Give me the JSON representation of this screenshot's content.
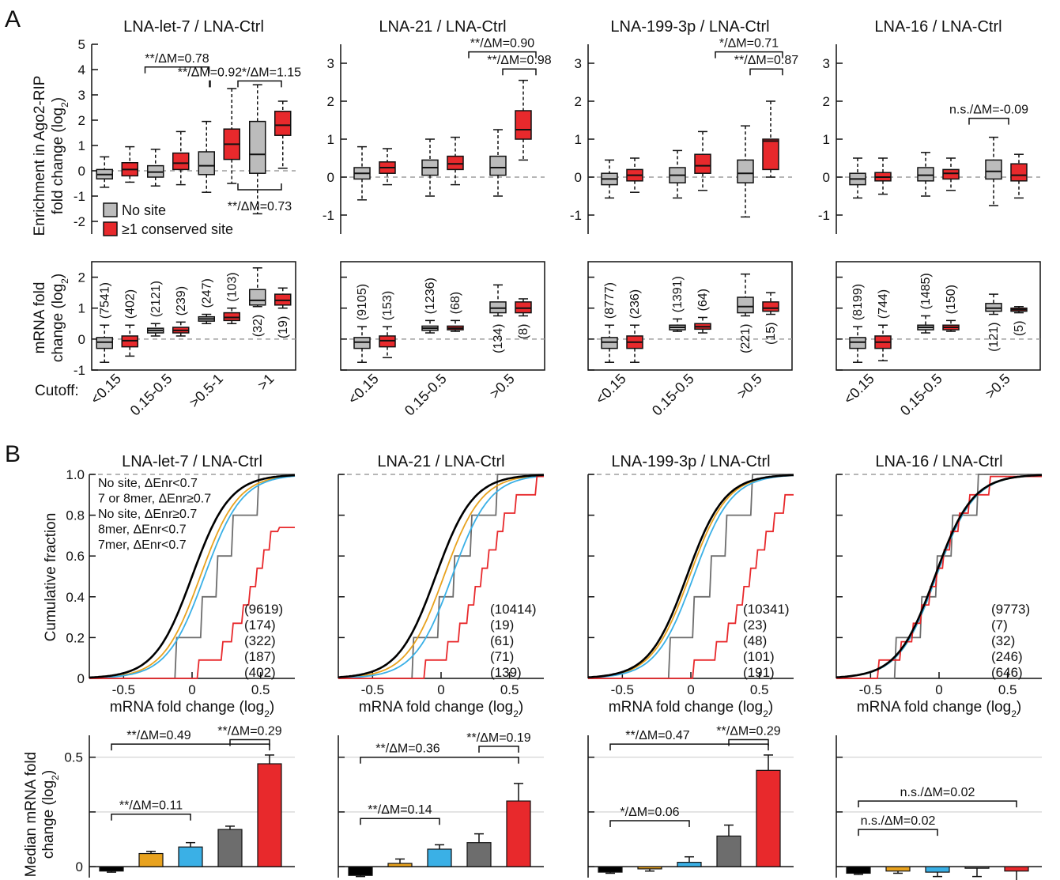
{
  "panels": {
    "a": "A",
    "b": "B"
  },
  "colors": {
    "red": "#e8292c",
    "gray": "#bcbcbc",
    "darkgray": "#6d6d6d",
    "black": "#000000",
    "blue": "#3ab0e6",
    "orange": "#e8a21e",
    "dash": "#9d9d9d"
  },
  "section_a": {
    "top_ylabel_1": "Enrichment in Ago2-RIP",
    "top_ylabel_2": "fold change (log",
    "top_ylabel_sub": "2",
    "top_ylabel_end": ")",
    "bottom_ylabel_1": "mRNA fold",
    "bottom_ylabel_2": "change (log",
    "bottom_ylabel_sub": "2",
    "bottom_ylabel_end": ")",
    "cutoff_label": "Cutoff:",
    "legend": [
      "No site",
      "≥1 conserved site"
    ]
  },
  "section_b": {
    "cdf_ylabel": "Cumulative fraction",
    "cdf_xlabel": "mRNA fold change (log",
    "cdf_xlabel_sub": "2",
    "cdf_xlabel_end": ")",
    "median_ylabel_1": "Median mRNA fold",
    "median_ylabel_2": "change (log",
    "median_ylabel_sub": "2",
    "median_ylabel_end": ")",
    "legend": [
      {
        "label": "No site, ΔEnr<0.7",
        "color": "#000000"
      },
      {
        "label": "7 or 8mer, ΔEnr≥0.7",
        "color": "#e8292c"
      },
      {
        "label": "No site, ΔEnr≥0.7",
        "color": "#6d6d6d"
      },
      {
        "label": "8mer, ΔEnr<0.7",
        "color": "#3ab0e6"
      },
      {
        "label": "7mer, ΔEnr<0.7",
        "color": "#e8a21e"
      }
    ]
  },
  "chart_data": [
    {
      "type": "box",
      "title": "LNA-let-7 / LNA-Ctrl",
      "categories": [
        "<0.15",
        "0.15-0.5",
        ">0.5-1",
        ">1"
      ],
      "ylim_top": [
        -2.5,
        5
      ],
      "yticks_top": [
        -2,
        -1,
        0,
        1,
        2,
        3,
        4,
        5
      ],
      "ylim_bottom": [
        -1,
        2.5
      ],
      "yticks_bottom": [
        -1,
        0,
        1,
        2
      ],
      "enrichment_boxes": [
        {
          "group": "No site",
          "cat": "<0.15",
          "min": -0.65,
          "q1": -0.32,
          "med": -0.15,
          "q3": 0.05,
          "max": 0.55
        },
        {
          "group": "≥1 conserved site",
          "cat": "<0.15",
          "min": -0.45,
          "q1": -0.2,
          "med": 0.05,
          "q3": 0.32,
          "max": 0.95
        },
        {
          "group": "No site",
          "cat": "0.15-0.5",
          "min": -0.6,
          "q1": -0.25,
          "med": -0.05,
          "q3": 0.2,
          "max": 0.85
        },
        {
          "group": "≥1 conserved site",
          "cat": "0.15-0.5",
          "min": -0.55,
          "q1": 0.05,
          "med": 0.3,
          "q3": 0.7,
          "max": 1.55
        },
        {
          "group": "No site",
          "cat": ">0.5-1",
          "min": -0.85,
          "q1": -0.15,
          "med": 0.2,
          "q3": 0.75,
          "max": 1.95
        },
        {
          "group": "≥1 conserved site",
          "cat": ">0.5-1",
          "min": -0.5,
          "q1": 0.45,
          "med": 1.05,
          "q3": 1.65,
          "max": 3.25
        },
        {
          "group": "No site",
          "cat": ">1",
          "min": -1.7,
          "q1": -0.1,
          "med": 0.65,
          "q3": 1.95,
          "max": 3.4
        },
        {
          "group": "≥1 conserved site",
          "cat": ">1",
          "min": 0.1,
          "q1": 1.4,
          "med": 1.8,
          "q3": 2.35,
          "max": 2.75
        }
      ],
      "mrna_boxes": [
        {
          "group": "No site",
          "cat": "<0.15",
          "min": -0.75,
          "q1": -0.3,
          "med": -0.1,
          "q3": 0.05,
          "max": 0.45
        },
        {
          "group": "≥1 conserved site",
          "cat": "<0.15",
          "min": -0.55,
          "q1": -0.25,
          "med": -0.05,
          "q3": 0.1,
          "max": 0.45
        },
        {
          "group": "No site",
          "cat": "0.15-0.5",
          "min": 0.1,
          "q1": 0.2,
          "med": 0.28,
          "q3": 0.35,
          "max": 0.5
        },
        {
          "group": "≥1 conserved site",
          "cat": "0.15-0.5",
          "min": 0.1,
          "q1": 0.2,
          "med": 0.28,
          "q3": 0.38,
          "max": 0.55
        },
        {
          "group": "No site",
          "cat": ">0.5-1",
          "min": 0.5,
          "q1": 0.58,
          "med": 0.65,
          "q3": 0.72,
          "max": 0.8
        },
        {
          "group": "≥1 conserved site",
          "cat": ">0.5-1",
          "min": 0.5,
          "q1": 0.6,
          "med": 0.7,
          "q3": 0.85,
          "max": 1.0
        },
        {
          "group": "No site",
          "cat": ">1",
          "min": 1.05,
          "q1": 1.1,
          "med": 1.25,
          "q3": 1.6,
          "max": 2.3
        },
        {
          "group": "≥1 conserved site",
          "cat": ">1",
          "min": 1.0,
          "q1": 1.1,
          "med": 1.25,
          "q3": 1.45,
          "max": 1.65
        }
      ],
      "counts": [
        "(7541)",
        "(402)",
        "(2121)",
        "(239)",
        "(247)",
        "(103)",
        "(32)",
        "(19)"
      ],
      "annotations": [
        "**/ΔM=0.78",
        "**/ΔM=0.92",
        "*/ΔM=1.15",
        "**/ΔM=0.73"
      ]
    },
    {
      "type": "box",
      "title": "LNA-21 / LNA-Ctrl",
      "categories": [
        "<0.15",
        "0.15-0.5",
        ">0.5"
      ],
      "ylim_top": [
        -1.5,
        3.5
      ],
      "yticks_top": [
        -1,
        0,
        1,
        2,
        3
      ],
      "ylim_bottom": [
        -1,
        2.5
      ],
      "enrichment_boxes": [
        {
          "group": "No site",
          "cat": "<0.15",
          "min": -0.6,
          "q1": -0.05,
          "med": 0.1,
          "q3": 0.25,
          "max": 0.8
        },
        {
          "group": "≥1 conserved site",
          "cat": "<0.15",
          "min": -0.2,
          "q1": 0.1,
          "med": 0.25,
          "q3": 0.4,
          "max": 0.75
        },
        {
          "group": "No site",
          "cat": "0.15-0.5",
          "min": -0.5,
          "q1": 0.05,
          "med": 0.25,
          "q3": 0.45,
          "max": 1.0
        },
        {
          "group": "≥1 conserved site",
          "cat": "0.15-0.5",
          "min": -0.2,
          "q1": 0.2,
          "med": 0.35,
          "q3": 0.55,
          "max": 1.05
        },
        {
          "group": "No site",
          "cat": ">0.5",
          "min": -0.5,
          "q1": 0.05,
          "med": 0.25,
          "q3": 0.55,
          "max": 1.25
        },
        {
          "group": "≥1 conserved site",
          "cat": ">0.5",
          "min": 0.45,
          "q1": 1.0,
          "med": 1.25,
          "q3": 1.75,
          "max": 2.55
        }
      ],
      "mrna_boxes": [
        {
          "group": "No site",
          "cat": "<0.15",
          "min": -0.75,
          "q1": -0.3,
          "med": -0.1,
          "q3": 0.05,
          "max": 0.4
        },
        {
          "group": "≥1 conserved site",
          "cat": "<0.15",
          "min": -0.6,
          "q1": -0.25,
          "med": -0.05,
          "q3": 0.1,
          "max": 0.4
        },
        {
          "group": "No site",
          "cat": "0.15-0.5",
          "min": 0.2,
          "q1": 0.28,
          "med": 0.35,
          "q3": 0.42,
          "max": 0.6
        },
        {
          "group": "≥1 conserved site",
          "cat": "0.15-0.5",
          "min": 0.25,
          "q1": 0.3,
          "med": 0.35,
          "q3": 0.42,
          "max": 0.6
        },
        {
          "group": "No site",
          "cat": ">0.5",
          "min": 0.75,
          "q1": 0.85,
          "med": 1.0,
          "q3": 1.2,
          "max": 1.75
        },
        {
          "group": "≥1 conserved site",
          "cat": ">0.5",
          "min": 0.75,
          "q1": 0.85,
          "med": 1.0,
          "q3": 1.2,
          "max": 1.3
        }
      ],
      "counts": [
        "(9105)",
        "(153)",
        "(1236)",
        "(68)",
        "(134)",
        "(8)"
      ],
      "annotations": [
        "**/ΔM=0.90",
        "**/ΔM=0.98"
      ]
    },
    {
      "type": "box",
      "title": "LNA-199-3p / LNA-Ctrl",
      "categories": [
        "<0.15",
        "0.15-0.5",
        ">0.5"
      ],
      "ylim_top": [
        -1.5,
        3.5
      ],
      "yticks_top": [
        -1,
        0,
        1,
        2,
        3
      ],
      "ylim_bottom": [
        -1,
        2.5
      ],
      "enrichment_boxes": [
        {
          "group": "No site",
          "cat": "<0.15",
          "min": -0.55,
          "q1": -0.2,
          "med": -0.05,
          "q3": 0.1,
          "max": 0.45
        },
        {
          "group": "≥1 conserved site",
          "cat": "<0.15",
          "min": -0.4,
          "q1": -0.1,
          "med": 0.05,
          "q3": 0.2,
          "max": 0.5
        },
        {
          "group": "No site",
          "cat": "0.15-0.5",
          "min": -0.55,
          "q1": -0.15,
          "med": 0.05,
          "q3": 0.25,
          "max": 0.7
        },
        {
          "group": "≥1 conserved site",
          "cat": "0.15-0.5",
          "min": -0.35,
          "q1": 0.1,
          "med": 0.3,
          "q3": 0.6,
          "max": 1.2
        },
        {
          "group": "No site",
          "cat": ">0.5",
          "min": -1.05,
          "q1": -0.15,
          "med": 0.1,
          "q3": 0.45,
          "max": 1.35
        },
        {
          "group": "≥1 conserved site",
          "cat": ">0.5",
          "min": 0.0,
          "q1": 0.2,
          "med": 0.95,
          "q3": 1.0,
          "max": 2.0
        }
      ],
      "mrna_boxes": [
        {
          "group": "No site",
          "cat": "<0.15",
          "min": -0.75,
          "q1": -0.3,
          "med": -0.1,
          "q3": 0.05,
          "max": 0.45
        },
        {
          "group": "≥1 conserved site",
          "cat": "<0.15",
          "min": -0.75,
          "q1": -0.3,
          "med": -0.1,
          "q3": 0.1,
          "max": 0.45
        },
        {
          "group": "No site",
          "cat": "0.15-0.5",
          "min": 0.25,
          "q1": 0.3,
          "med": 0.38,
          "q3": 0.45,
          "max": 0.65
        },
        {
          "group": "≥1 conserved site",
          "cat": "0.15-0.5",
          "min": 0.2,
          "q1": 0.32,
          "med": 0.4,
          "q3": 0.5,
          "max": 0.7
        },
        {
          "group": "No site",
          "cat": ">0.5",
          "min": 0.75,
          "q1": 0.85,
          "med": 1.05,
          "q3": 1.35,
          "max": 2.1
        },
        {
          "group": "≥1 conserved site",
          "cat": ">0.5",
          "min": 0.8,
          "q1": 0.9,
          "med": 1.0,
          "q3": 1.2,
          "max": 1.5
        }
      ],
      "counts": [
        "(8777)",
        "(236)",
        "(1391)",
        "(64)",
        "(221)",
        "(15)"
      ],
      "annotations": [
        "*/ΔM=0.71",
        "**/ΔM=0.87"
      ]
    },
    {
      "type": "box",
      "title": "LNA-16 / LNA-Ctrl",
      "categories": [
        "<0.15",
        "0.15-0.5",
        ">0.5"
      ],
      "ylim_top": [
        -1.5,
        3.5
      ],
      "yticks_top": [
        -1,
        0,
        1,
        2,
        3
      ],
      "ylim_bottom": [
        -1,
        2.5
      ],
      "enrichment_boxes": [
        {
          "group": "No site",
          "cat": "<0.15",
          "min": -0.55,
          "q1": -0.2,
          "med": -0.05,
          "q3": 0.1,
          "max": 0.5
        },
        {
          "group": "≥1 conserved site",
          "cat": "<0.15",
          "min": -0.45,
          "q1": -0.1,
          "med": 0.0,
          "q3": 0.12,
          "max": 0.5
        },
        {
          "group": "No site",
          "cat": "0.15-0.5",
          "min": -0.5,
          "q1": -0.1,
          "med": 0.05,
          "q3": 0.25,
          "max": 0.65
        },
        {
          "group": "≥1 conserved site",
          "cat": "0.15-0.5",
          "min": -0.35,
          "q1": -0.05,
          "med": 0.1,
          "q3": 0.2,
          "max": 0.5
        },
        {
          "group": "No site",
          "cat": ">0.5",
          "min": -0.75,
          "q1": -0.05,
          "med": 0.15,
          "q3": 0.45,
          "max": 1.05
        },
        {
          "group": "≥1 conserved site",
          "cat": ">0.5",
          "min": -0.55,
          "q1": -0.1,
          "med": 0.05,
          "q3": 0.35,
          "max": 0.6
        }
      ],
      "mrna_boxes": [
        {
          "group": "No site",
          "cat": "<0.15",
          "min": -0.75,
          "q1": -0.3,
          "med": -0.1,
          "q3": 0.05,
          "max": 0.4
        },
        {
          "group": "≥1 conserved site",
          "cat": "<0.15",
          "min": -0.7,
          "q1": -0.3,
          "med": -0.1,
          "q3": 0.1,
          "max": 0.45
        },
        {
          "group": "No site",
          "cat": "0.15-0.5",
          "min": 0.2,
          "q1": 0.3,
          "med": 0.38,
          "q3": 0.45,
          "max": 0.75
        },
        {
          "group": "≥1 conserved site",
          "cat": "0.15-0.5",
          "min": 0.25,
          "q1": 0.3,
          "med": 0.38,
          "q3": 0.45,
          "max": 0.6
        },
        {
          "group": "No site",
          "cat": ">0.5",
          "min": 0.8,
          "q1": 0.9,
          "med": 1.0,
          "q3": 1.15,
          "max": 1.45
        },
        {
          "group": "≥1 conserved site",
          "cat": ">0.5",
          "min": 0.85,
          "q1": 0.9,
          "med": 0.95,
          "q3": 1.0,
          "max": 1.05
        }
      ],
      "counts": [
        "(8199)",
        "(744)",
        "(1485)",
        "(150)",
        "(121)",
        "(5)"
      ],
      "annotations": [
        "n.s./ΔM=-0.09"
      ]
    },
    {
      "type": "line",
      "subtype": "cumulative distribution",
      "titles": [
        "LNA-let-7 / LNA-Ctrl",
        "LNA-21 / LNA-Ctrl",
        "LNA-199-3p / LNA-Ctrl",
        "LNA-16 / LNA-Ctrl"
      ],
      "xlim": [
        -0.75,
        0.75
      ],
      "xticks": [
        -0.5,
        0,
        0.5
      ],
      "ylim": [
        0,
        1.0
      ],
      "yticks": [
        0,
        0.2,
        0.4,
        0.6,
        0.8,
        1.0
      ],
      "series_order": [
        "No site, ΔEnr<0.7",
        "7 or 8mer, ΔEnr≥0.7",
        "No site, ΔEnr≥0.7",
        "8mer, ΔEnr<0.7",
        "7mer, ΔEnr<0.7"
      ],
      "medians": [
        [
          0.0,
          0.47,
          0.18,
          0.09,
          0.06
        ],
        [
          -0.04,
          0.3,
          0.1,
          0.08,
          0.02
        ],
        [
          -0.03,
          0.44,
          0.14,
          0.02,
          -0.01
        ],
        [
          -0.03,
          -0.02,
          -0.02,
          -0.02,
          -0.02
        ]
      ],
      "steps": [
        1.0,
        0.09,
        0.2,
        1.0,
        1.0
      ],
      "counts": [
        [
          "(9619)",
          "(174)",
          "(322)",
          "(187)",
          "(402)"
        ],
        [
          "(10414)",
          "(19)",
          "(61)",
          "(71)",
          "(139)"
        ],
        [
          "(10341)",
          "(23)",
          "(48)",
          "(101)",
          "(191)"
        ],
        [
          "(9773)",
          "(7)",
          "(32)",
          "(246)",
          "(646)"
        ]
      ]
    },
    {
      "type": "bar",
      "ylim": [
        -0.05,
        0.6
      ],
      "yticks": [
        0,
        0.5
      ],
      "categories": [
        "No site, ΔEnr<0.7",
        "7mer, ΔEnr<0.7",
        "8mer, ΔEnr<0.7",
        "No site, ΔEnr≥0.7",
        "7 or 8mer, ΔEnr≥0.7"
      ],
      "panels": [
        {
          "values": [
            -0.02,
            0.06,
            0.09,
            0.17,
            0.47
          ],
          "errors": [
            0.005,
            0.01,
            0.02,
            0.015,
            0.04
          ],
          "annotations": [
            "**/ΔM=0.49",
            "**/ΔM=0.29",
            "**/ΔM=0.11"
          ]
        },
        {
          "values": [
            -0.04,
            0.015,
            0.08,
            0.11,
            0.3
          ],
          "errors": [
            0.005,
            0.02,
            0.02,
            0.04,
            0.08
          ],
          "annotations": [
            "**/ΔM=0.36",
            "**/ΔM=0.19",
            "**/ΔM=0.14"
          ]
        },
        {
          "values": [
            -0.025,
            -0.01,
            0.02,
            0.14,
            0.44
          ],
          "errors": [
            0.005,
            0.01,
            0.025,
            0.05,
            0.07
          ],
          "annotations": [
            "**/ΔM=0.47",
            "**/ΔM=0.29",
            "*/ΔM=0.06"
          ]
        },
        {
          "values": [
            -0.03,
            -0.02,
            -0.025,
            -0.005,
            -0.02
          ],
          "errors": [
            0.005,
            0.01,
            0.02,
            0.04,
            0.05
          ],
          "annotations": [
            "n.s./ΔM=0.02",
            "n.s./ΔM=0.02"
          ]
        }
      ]
    }
  ]
}
